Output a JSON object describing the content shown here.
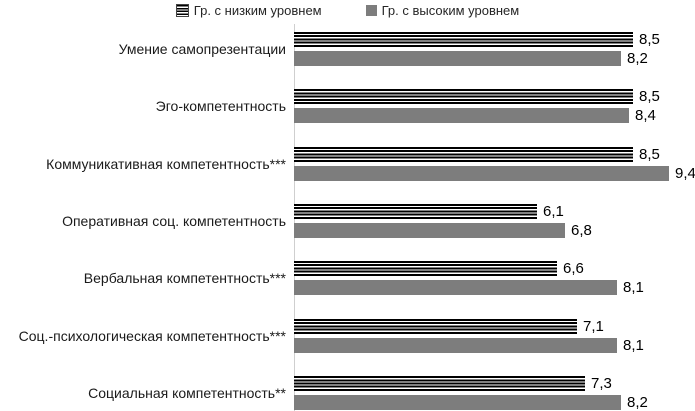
{
  "chart_data": {
    "type": "bar",
    "orientation": "horizontal",
    "title": "",
    "xlabel": "",
    "ylabel": "",
    "xlim": [
      0,
      10
    ],
    "grid": false,
    "legend_position": "top",
    "decimal_separator": ",",
    "categories": [
      "Умение самопрезентации",
      "Эго-компетентность",
      "Коммуникативная компетентность***",
      "Оперативная соц. компетентность",
      "Вербальная компетентность***",
      "Соц.-психологическая компетентность***",
      "Социальная компетентность**"
    ],
    "series": [
      {
        "name": "Гр. с низким уровнем",
        "style": "striped",
        "values": [
          8.5,
          8.5,
          8.5,
          6.1,
          6.6,
          7.1,
          7.3
        ],
        "labels": [
          "8,5",
          "8,5",
          "8,5",
          "6,1",
          "6,6",
          "7,1",
          "7,3"
        ]
      },
      {
        "name": "Гр. с высоким уровнем",
        "style": "solid",
        "values": [
          8.2,
          8.4,
          9.4,
          6.8,
          8.1,
          8.1,
          8.2
        ],
        "labels": [
          "8,2",
          "8,4",
          "9,4",
          "6,8",
          "8,1",
          "8,1",
          "8,2"
        ]
      }
    ],
    "colors": {
      "low_series_stripe": "#000000",
      "low_series_background": "#ffffff",
      "high_series_fill": "#7d7d7d",
      "axis_line": "#cfcfcf",
      "text": "#1a1a1a"
    }
  }
}
